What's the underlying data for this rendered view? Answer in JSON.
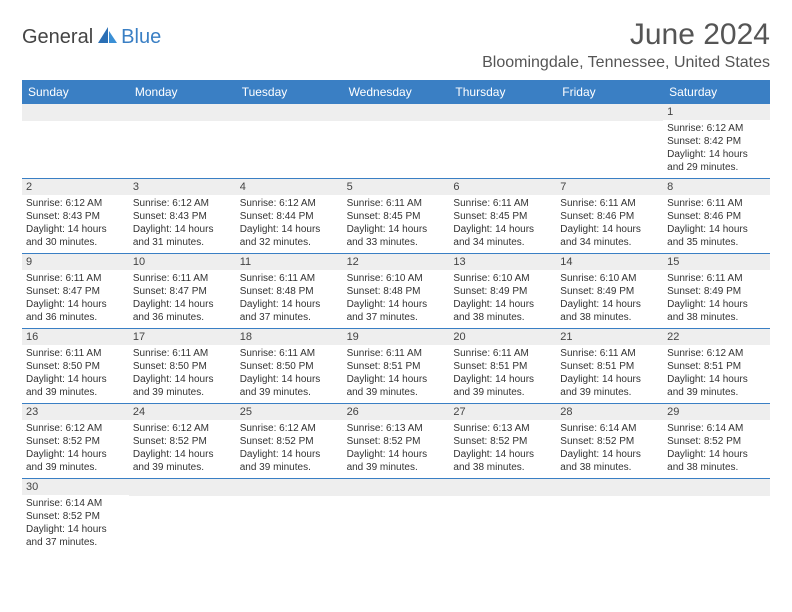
{
  "logo": {
    "text_dark": "General",
    "text_blue": "Blue"
  },
  "title": "June 2024",
  "location": "Bloomingdale, Tennessee, United States",
  "colors": {
    "header_bg": "#3a7fc4",
    "header_text": "#ffffff",
    "daynum_bg": "#eeeeee",
    "divider": "#3a7fc4"
  },
  "day_labels": [
    "Sunday",
    "Monday",
    "Tuesday",
    "Wednesday",
    "Thursday",
    "Friday",
    "Saturday"
  ],
  "weeks": [
    [
      {
        "day": "",
        "sunrise": "",
        "sunset": "",
        "daylight": ""
      },
      {
        "day": "",
        "sunrise": "",
        "sunset": "",
        "daylight": ""
      },
      {
        "day": "",
        "sunrise": "",
        "sunset": "",
        "daylight": ""
      },
      {
        "day": "",
        "sunrise": "",
        "sunset": "",
        "daylight": ""
      },
      {
        "day": "",
        "sunrise": "",
        "sunset": "",
        "daylight": ""
      },
      {
        "day": "",
        "sunrise": "",
        "sunset": "",
        "daylight": ""
      },
      {
        "day": "1",
        "sunrise": "Sunrise: 6:12 AM",
        "sunset": "Sunset: 8:42 PM",
        "daylight": "Daylight: 14 hours and 29 minutes."
      }
    ],
    [
      {
        "day": "2",
        "sunrise": "Sunrise: 6:12 AM",
        "sunset": "Sunset: 8:43 PM",
        "daylight": "Daylight: 14 hours and 30 minutes."
      },
      {
        "day": "3",
        "sunrise": "Sunrise: 6:12 AM",
        "sunset": "Sunset: 8:43 PM",
        "daylight": "Daylight: 14 hours and 31 minutes."
      },
      {
        "day": "4",
        "sunrise": "Sunrise: 6:12 AM",
        "sunset": "Sunset: 8:44 PM",
        "daylight": "Daylight: 14 hours and 32 minutes."
      },
      {
        "day": "5",
        "sunrise": "Sunrise: 6:11 AM",
        "sunset": "Sunset: 8:45 PM",
        "daylight": "Daylight: 14 hours and 33 minutes."
      },
      {
        "day": "6",
        "sunrise": "Sunrise: 6:11 AM",
        "sunset": "Sunset: 8:45 PM",
        "daylight": "Daylight: 14 hours and 34 minutes."
      },
      {
        "day": "7",
        "sunrise": "Sunrise: 6:11 AM",
        "sunset": "Sunset: 8:46 PM",
        "daylight": "Daylight: 14 hours and 34 minutes."
      },
      {
        "day": "8",
        "sunrise": "Sunrise: 6:11 AM",
        "sunset": "Sunset: 8:46 PM",
        "daylight": "Daylight: 14 hours and 35 minutes."
      }
    ],
    [
      {
        "day": "9",
        "sunrise": "Sunrise: 6:11 AM",
        "sunset": "Sunset: 8:47 PM",
        "daylight": "Daylight: 14 hours and 36 minutes."
      },
      {
        "day": "10",
        "sunrise": "Sunrise: 6:11 AM",
        "sunset": "Sunset: 8:47 PM",
        "daylight": "Daylight: 14 hours and 36 minutes."
      },
      {
        "day": "11",
        "sunrise": "Sunrise: 6:11 AM",
        "sunset": "Sunset: 8:48 PM",
        "daylight": "Daylight: 14 hours and 37 minutes."
      },
      {
        "day": "12",
        "sunrise": "Sunrise: 6:10 AM",
        "sunset": "Sunset: 8:48 PM",
        "daylight": "Daylight: 14 hours and 37 minutes."
      },
      {
        "day": "13",
        "sunrise": "Sunrise: 6:10 AM",
        "sunset": "Sunset: 8:49 PM",
        "daylight": "Daylight: 14 hours and 38 minutes."
      },
      {
        "day": "14",
        "sunrise": "Sunrise: 6:10 AM",
        "sunset": "Sunset: 8:49 PM",
        "daylight": "Daylight: 14 hours and 38 minutes."
      },
      {
        "day": "15",
        "sunrise": "Sunrise: 6:11 AM",
        "sunset": "Sunset: 8:49 PM",
        "daylight": "Daylight: 14 hours and 38 minutes."
      }
    ],
    [
      {
        "day": "16",
        "sunrise": "Sunrise: 6:11 AM",
        "sunset": "Sunset: 8:50 PM",
        "daylight": "Daylight: 14 hours and 39 minutes."
      },
      {
        "day": "17",
        "sunrise": "Sunrise: 6:11 AM",
        "sunset": "Sunset: 8:50 PM",
        "daylight": "Daylight: 14 hours and 39 minutes."
      },
      {
        "day": "18",
        "sunrise": "Sunrise: 6:11 AM",
        "sunset": "Sunset: 8:50 PM",
        "daylight": "Daylight: 14 hours and 39 minutes."
      },
      {
        "day": "19",
        "sunrise": "Sunrise: 6:11 AM",
        "sunset": "Sunset: 8:51 PM",
        "daylight": "Daylight: 14 hours and 39 minutes."
      },
      {
        "day": "20",
        "sunrise": "Sunrise: 6:11 AM",
        "sunset": "Sunset: 8:51 PM",
        "daylight": "Daylight: 14 hours and 39 minutes."
      },
      {
        "day": "21",
        "sunrise": "Sunrise: 6:11 AM",
        "sunset": "Sunset: 8:51 PM",
        "daylight": "Daylight: 14 hours and 39 minutes."
      },
      {
        "day": "22",
        "sunrise": "Sunrise: 6:12 AM",
        "sunset": "Sunset: 8:51 PM",
        "daylight": "Daylight: 14 hours and 39 minutes."
      }
    ],
    [
      {
        "day": "23",
        "sunrise": "Sunrise: 6:12 AM",
        "sunset": "Sunset: 8:52 PM",
        "daylight": "Daylight: 14 hours and 39 minutes."
      },
      {
        "day": "24",
        "sunrise": "Sunrise: 6:12 AM",
        "sunset": "Sunset: 8:52 PM",
        "daylight": "Daylight: 14 hours and 39 minutes."
      },
      {
        "day": "25",
        "sunrise": "Sunrise: 6:12 AM",
        "sunset": "Sunset: 8:52 PM",
        "daylight": "Daylight: 14 hours and 39 minutes."
      },
      {
        "day": "26",
        "sunrise": "Sunrise: 6:13 AM",
        "sunset": "Sunset: 8:52 PM",
        "daylight": "Daylight: 14 hours and 39 minutes."
      },
      {
        "day": "27",
        "sunrise": "Sunrise: 6:13 AM",
        "sunset": "Sunset: 8:52 PM",
        "daylight": "Daylight: 14 hours and 38 minutes."
      },
      {
        "day": "28",
        "sunrise": "Sunrise: 6:14 AM",
        "sunset": "Sunset: 8:52 PM",
        "daylight": "Daylight: 14 hours and 38 minutes."
      },
      {
        "day": "29",
        "sunrise": "Sunrise: 6:14 AM",
        "sunset": "Sunset: 8:52 PM",
        "daylight": "Daylight: 14 hours and 38 minutes."
      }
    ],
    [
      {
        "day": "30",
        "sunrise": "Sunrise: 6:14 AM",
        "sunset": "Sunset: 8:52 PM",
        "daylight": "Daylight: 14 hours and 37 minutes."
      },
      {
        "day": "",
        "sunrise": "",
        "sunset": "",
        "daylight": ""
      },
      {
        "day": "",
        "sunrise": "",
        "sunset": "",
        "daylight": ""
      },
      {
        "day": "",
        "sunrise": "",
        "sunset": "",
        "daylight": ""
      },
      {
        "day": "",
        "sunrise": "",
        "sunset": "",
        "daylight": ""
      },
      {
        "day": "",
        "sunrise": "",
        "sunset": "",
        "daylight": ""
      },
      {
        "day": "",
        "sunrise": "",
        "sunset": "",
        "daylight": ""
      }
    ]
  ]
}
